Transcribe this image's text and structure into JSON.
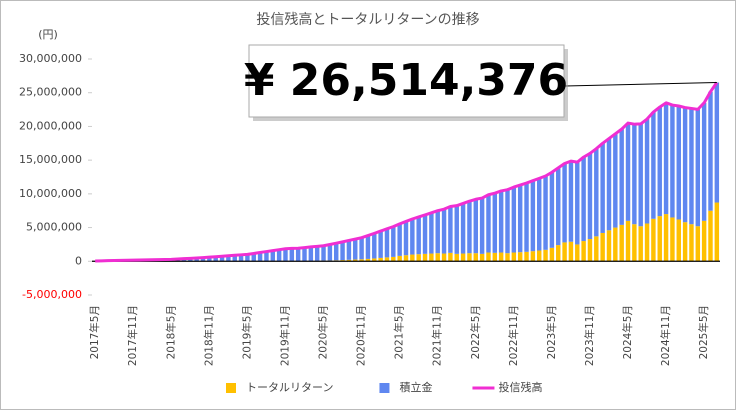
{
  "chart_data": {
    "type": "stacked_bar_line",
    "title": "投信残高とトータルリターンの推移",
    "y_unit_label": "(円)",
    "annotation": "¥ 26,514,376",
    "categories": [
      "2017年5月",
      null,
      null,
      null,
      null,
      null,
      "2017年11月",
      null,
      null,
      null,
      null,
      null,
      "2018年5月",
      null,
      null,
      null,
      null,
      null,
      "2018年11月",
      null,
      null,
      null,
      null,
      null,
      "2019年5月",
      null,
      null,
      null,
      null,
      null,
      "2019年11月",
      null,
      null,
      null,
      null,
      null,
      "2020年5月",
      null,
      null,
      null,
      null,
      null,
      "2020年11月",
      null,
      null,
      null,
      null,
      null,
      "2021年5月",
      null,
      null,
      null,
      null,
      null,
      "2021年11月",
      null,
      null,
      null,
      null,
      null,
      "2022年5月",
      null,
      null,
      null,
      null,
      null,
      "2022年11月",
      null,
      null,
      null,
      null,
      null,
      "2023年5月",
      null,
      null,
      null,
      null,
      null,
      "2023年11月",
      null,
      null,
      null,
      null,
      null,
      "2024年5月",
      null,
      null,
      null,
      null,
      null,
      "2024年11月",
      null,
      null,
      null,
      null,
      null,
      "2025年5月",
      null,
      null
    ],
    "series": [
      {
        "name": "トータルリターン",
        "kind": "bar",
        "color": "#ffc000",
        "values": [
          0,
          0,
          0,
          0,
          0,
          0,
          0,
          0,
          0,
          0,
          0,
          0,
          0,
          0,
          0,
          0,
          0,
          0,
          10000,
          10000,
          20000,
          20000,
          20000,
          30000,
          30000,
          30000,
          40000,
          40000,
          50000,
          50000,
          60000,
          50000,
          0,
          20000,
          60000,
          80000,
          100000,
          120000,
          150000,
          180000,
          220000,
          260000,
          300000,
          350000,
          420000,
          500000,
          580000,
          650000,
          800000,
          900000,
          1000000,
          1050000,
          1100000,
          1150000,
          1200000,
          1150000,
          1250000,
          1100000,
          1150000,
          1200000,
          1200000,
          1100000,
          1300000,
          1250000,
          1300000,
          1200000,
          1300000,
          1350000,
          1400000,
          1500000,
          1600000,
          1700000,
          2000000,
          2400000,
          2800000,
          2900000,
          2500000,
          3000000,
          3300000,
          3700000,
          4200000,
          4600000,
          5000000,
          5400000,
          6000000,
          5500000,
          5200000,
          5600000,
          6300000,
          6700000,
          7000000,
          6500000,
          6200000,
          5800000,
          5500000,
          5200000,
          6000000,
          7500000,
          8714376
        ]
      },
      {
        "name": "積立金",
        "kind": "bar",
        "color": "#5f87f0",
        "values": [
          50000,
          70000,
          90000,
          110000,
          130000,
          150000,
          170000,
          190000,
          210000,
          230000,
          250000,
          270000,
          290000,
          340000,
          390000,
          440000,
          490000,
          540000,
          600000,
          670000,
          730000,
          800000,
          870000,
          930000,
          1000000,
          1130000,
          1270000,
          1400000,
          1530000,
          1670000,
          1800000,
          1870000,
          1930000,
          2000000,
          2070000,
          2130000,
          2200000,
          2370000,
          2530000,
          2700000,
          2870000,
          3030000,
          3200000,
          3460000,
          3720000,
          3980000,
          4230000,
          4490000,
          4750000,
          5010000,
          5270000,
          5530000,
          5780000,
          6040000,
          6300000,
          6580000,
          6870000,
          7150000,
          7430000,
          7720000,
          8000000,
          8280000,
          8570000,
          8850000,
          9130000,
          9420000,
          9700000,
          9950000,
          10200000,
          10450000,
          10700000,
          10950000,
          11200000,
          11450000,
          11700000,
          11950000,
          12200000,
          12450000,
          12700000,
          13000000,
          13300000,
          13600000,
          13900000,
          14200000,
          14500000,
          14830000,
          15170000,
          15500000,
          15830000,
          16170000,
          16500000,
          16670000,
          16830000,
          17000000,
          17170000,
          17330000,
          17500000,
          17650000,
          17800000
        ]
      },
      {
        "name": "投信残高",
        "kind": "line",
        "color": "#f02ed2",
        "values": [
          50000,
          70000,
          90000,
          110000,
          130000,
          150000,
          170000,
          190000,
          210000,
          230000,
          250000,
          270000,
          290000,
          340000,
          390000,
          440000,
          490000,
          540000,
          610000,
          680000,
          750000,
          820000,
          890000,
          960000,
          1030000,
          1160000,
          1310000,
          1440000,
          1580000,
          1720000,
          1860000,
          1920000,
          1930000,
          2020000,
          2130000,
          2210000,
          2300000,
          2490000,
          2680000,
          2880000,
          3090000,
          3290000,
          3500000,
          3810000,
          4140000,
          4480000,
          4810000,
          5140000,
          5550000,
          5910000,
          6270000,
          6580000,
          6880000,
          7190000,
          7500000,
          7730000,
          8120000,
          8250000,
          8580000,
          8920000,
          9200000,
          9380000,
          9870000,
          10100000,
          10430000,
          10620000,
          11000000,
          11300000,
          11600000,
          11950000,
          12300000,
          12650000,
          13200000,
          13850000,
          14500000,
          14850000,
          14700000,
          15450000,
          16000000,
          16700000,
          17500000,
          18200000,
          18900000,
          19600000,
          20500000,
          20330000,
          20370000,
          21100000,
          22130000,
          22870000,
          23500000,
          23170000,
          23030000,
          22800000,
          22670000,
          22530000,
          23500000,
          25150000,
          26514376
        ]
      }
    ],
    "ylim": [
      -5000000,
      30000000
    ],
    "yticks": [
      {
        "value": -5000000,
        "label": "-5,000,000",
        "color": "#ff0000"
      },
      0,
      {
        "value": 5000000,
        "label": "5,000,000"
      },
      {
        "value": 10000000,
        "label": "10,000,000"
      },
      {
        "value": 15000000,
        "label": "15,000,000"
      },
      {
        "value": 20000000,
        "label": "20,000,000"
      },
      {
        "value": 25000000,
        "label": "25,000,000"
      },
      {
        "value": 30000000,
        "label": "30,000,000"
      }
    ],
    "legend": "bottom"
  }
}
